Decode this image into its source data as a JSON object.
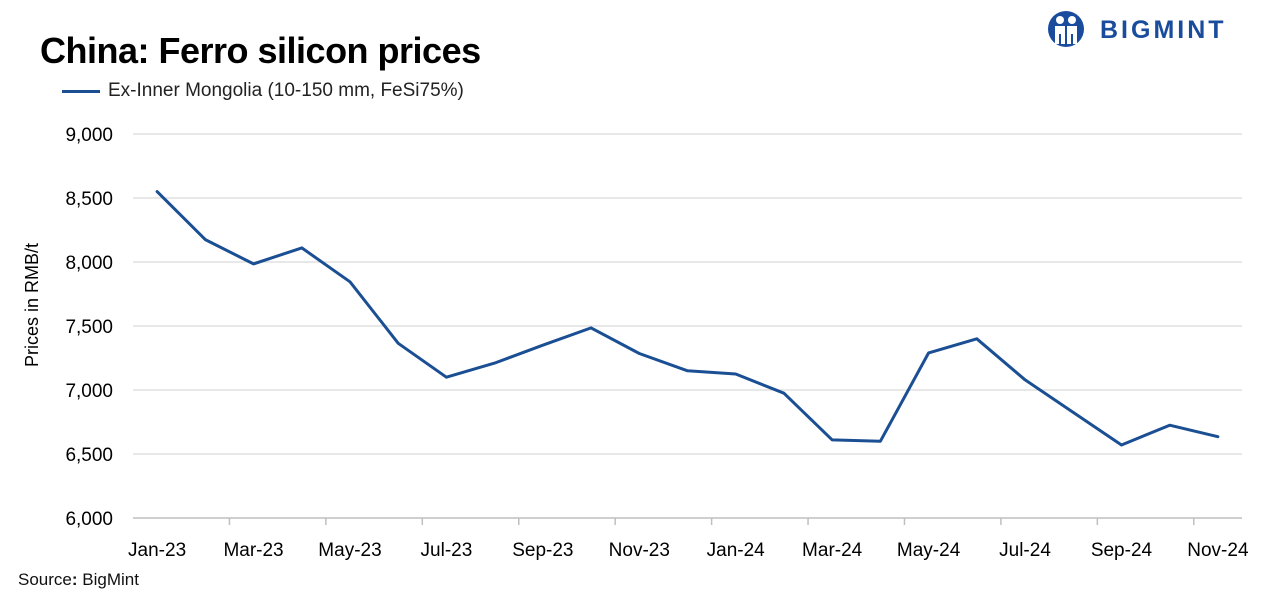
{
  "title": "China: Ferro silicon prices",
  "brand": {
    "name": "BIGMINT",
    "color": "#1a4c9e"
  },
  "source_prefix": "Source",
  "source_colon": ":",
  "source_name": "BigMint",
  "colors": {
    "line": "#1b4f93",
    "grid": "#d9d9d9",
    "axis": "#bfbfbf"
  },
  "chart_data": {
    "type": "line",
    "title": "China: Ferro silicon prices",
    "ylabel": "Prices in RMB/t",
    "xlabel": "",
    "ylim": [
      6000,
      9000
    ],
    "y_ticks": [
      6000,
      6500,
      7000,
      7500,
      8000,
      8500,
      9000
    ],
    "y_tick_labels": [
      "6,000",
      "6,500",
      "7,000",
      "7,500",
      "8,000",
      "8,500",
      "9,000"
    ],
    "x_tick_labels": [
      "Jan-23",
      "Mar-23",
      "May-23",
      "Jul-23",
      "Sep-23",
      "Nov-23",
      "Jan-24",
      "Mar-24",
      "May-24",
      "Jul-24",
      "Sep-24",
      "Nov-24"
    ],
    "grid": true,
    "legend": "top-left",
    "categories": [
      "Jan-23",
      "Feb-23",
      "Mar-23",
      "Apr-23",
      "May-23",
      "Jun-23",
      "Jul-23",
      "Aug-23",
      "Sep-23",
      "Oct-23",
      "Nov-23",
      "Dec-23",
      "Jan-24",
      "Feb-24",
      "Mar-24",
      "Apr-24",
      "May-24",
      "Jun-24",
      "Jul-24",
      "Aug-24",
      "Sep-24",
      "Oct-24",
      "Nov-24"
    ],
    "series": [
      {
        "name": "Ex-Inner Mongolia (10-150 mm, FeSi75%)",
        "values": [
          8550,
          8175,
          7985,
          8110,
          7845,
          7365,
          7100,
          7210,
          7350,
          7485,
          7285,
          7150,
          7125,
          6975,
          6610,
          6600,
          7290,
          7400,
          7080,
          6825,
          6570,
          6725,
          6635
        ]
      }
    ]
  }
}
